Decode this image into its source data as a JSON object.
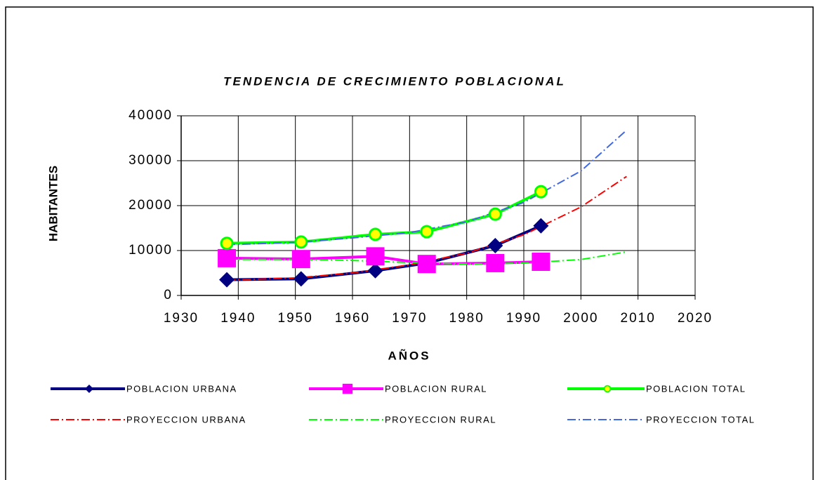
{
  "chart_data": {
    "type": "line",
    "title": "TENDENCIA DE CRECIMIENTO POBLACIONAL",
    "xlabel": "AÑOS",
    "ylabel": "HABITANTES",
    "xlim": [
      1930,
      2020
    ],
    "xticks": [
      1930,
      1940,
      1950,
      1960,
      1970,
      1980,
      1990,
      2000,
      2010,
      2020
    ],
    "ylim": [
      0,
      40000
    ],
    "yticks": [
      0,
      10000,
      20000,
      30000,
      40000
    ],
    "grid": true,
    "legend": "bottom",
    "series": [
      {
        "name": "POBLACION URBANA",
        "color": "#000080",
        "style": "solid",
        "marker": "diamond",
        "x": [
          1938,
          1951,
          1964,
          1973,
          1985,
          1993
        ],
        "values": [
          3500,
          3700,
          5500,
          7200,
          11100,
          15500
        ]
      },
      {
        "name": "POBLACION RURAL",
        "color": "#ff00ff",
        "style": "solid",
        "marker": "square",
        "x": [
          1938,
          1951,
          1964,
          1973,
          1985,
          1993
        ],
        "values": [
          8300,
          8100,
          8700,
          7000,
          7200,
          7500
        ]
      },
      {
        "name": "POBLACION TOTAL",
        "color": "#00ff00",
        "style": "solid",
        "marker": "circle",
        "x": [
          1938,
          1951,
          1964,
          1973,
          1985,
          1993
        ],
        "values": [
          11600,
          11900,
          13600,
          14200,
          18100,
          23100
        ]
      },
      {
        "name": "PROYECCION URBANA",
        "color": "#ff0000",
        "style": "dashdot",
        "marker": "none",
        "x": [
          1938,
          1950,
          1960,
          1970,
          1980,
          1990,
          2000,
          2008
        ],
        "values": [
          3400,
          3900,
          5000,
          6800,
          9400,
          13500,
          19700,
          26500
        ]
      },
      {
        "name": "PROYECCION RURAL",
        "color": "#00ff00",
        "style": "dashdot",
        "marker": "none",
        "x": [
          1938,
          1950,
          1960,
          1970,
          1980,
          1990,
          2000,
          2008
        ],
        "values": [
          8000,
          8000,
          7800,
          7300,
          7000,
          7200,
          8000,
          9700
        ]
      },
      {
        "name": "PROYECCION TOTAL",
        "color": "#4169e1",
        "style": "dashdot",
        "marker": "none",
        "x": [
          1938,
          1950,
          1960,
          1970,
          1980,
          1990,
          2000,
          2008
        ],
        "values": [
          11300,
          11800,
          12800,
          14000,
          16400,
          20700,
          27700,
          36800
        ]
      }
    ]
  }
}
